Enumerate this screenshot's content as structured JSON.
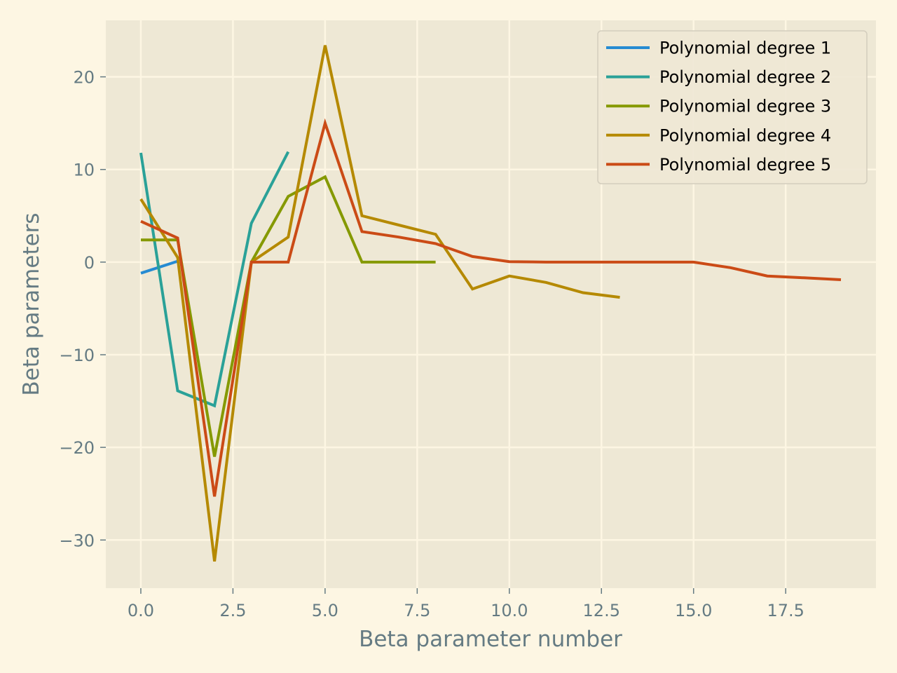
{
  "chart_data": {
    "type": "line",
    "xlabel": "Beta parameter number",
    "ylabel": "Beta parameters",
    "xlim": [
      -0.95,
      19.95
    ],
    "ylim": [
      -35.2,
      26.1
    ],
    "xticks": [
      0.0,
      2.5,
      5.0,
      7.5,
      10.0,
      12.5,
      15.0,
      17.5
    ],
    "xtick_labels": [
      "0.0",
      "2.5",
      "5.0",
      "7.5",
      "10.0",
      "12.5",
      "15.0",
      "17.5"
    ],
    "yticks": [
      -30,
      -20,
      -10,
      0,
      10,
      20
    ],
    "ytick_labels": [
      "−30",
      "−20",
      "−10",
      "0",
      "10",
      "20"
    ],
    "grid": true,
    "legend_position": "top-right",
    "series": [
      {
        "name": "Polynomial degree 1",
        "color": "#268bd2",
        "x": [
          0,
          1
        ],
        "y": [
          -1.2,
          0.1
        ]
      },
      {
        "name": "Polynomial degree 2",
        "color": "#2aa198",
        "x": [
          0,
          1,
          2,
          3,
          4
        ],
        "y": [
          11.8,
          -13.9,
          -15.5,
          4.2,
          11.9
        ]
      },
      {
        "name": "Polynomial degree 3",
        "color": "#859900",
        "x": [
          0,
          1,
          2,
          3,
          4,
          5,
          6,
          7,
          8
        ],
        "y": [
          2.4,
          2.4,
          -21.0,
          0.0,
          7.1,
          9.2,
          0.0,
          0.0,
          0.0
        ]
      },
      {
        "name": "Polynomial degree 4",
        "color": "#b58900",
        "x": [
          0,
          1,
          2,
          3,
          4,
          5,
          6,
          7,
          8,
          9,
          10,
          11,
          12,
          13
        ],
        "y": [
          6.8,
          0.5,
          -32.3,
          0.0,
          2.7,
          23.4,
          5.0,
          4.0,
          3.0,
          -2.9,
          -1.5,
          -2.2,
          -3.3,
          -3.8
        ]
      },
      {
        "name": "Polynomial degree 5",
        "color": "#cb4b16",
        "x": [
          0,
          1,
          2,
          3,
          4,
          5,
          6,
          7,
          8,
          9,
          10,
          11,
          12,
          13,
          14,
          15,
          16,
          17,
          18,
          19
        ],
        "y": [
          4.4,
          2.6,
          -25.3,
          0.0,
          0.0,
          15.0,
          3.3,
          2.7,
          2.0,
          0.6,
          0.05,
          0.0,
          0.0,
          0.0,
          0.0,
          0.0,
          -0.6,
          -1.5,
          -1.7,
          -1.9
        ]
      }
    ]
  }
}
